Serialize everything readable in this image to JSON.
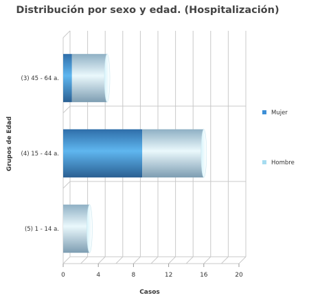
{
  "chart_data": {
    "type": "bar",
    "orientation": "horizontal",
    "stacked": true,
    "style": "3d-cylinder",
    "title": "Distribución por sexo y edad. (Hospitalización)",
    "xlabel": "Casos",
    "ylabel": "Grupos de Edad",
    "xlim": [
      0,
      20
    ],
    "xticks": [
      0,
      4,
      8,
      12,
      16,
      20
    ],
    "grid": true,
    "legend_position": "right",
    "categories": [
      "(3) 45 - 64 a.",
      "(4) 15 - 44 a.",
      "(5) 1 - 14 a."
    ],
    "series": [
      {
        "name": "Mujer",
        "values": [
          1,
          9,
          0
        ],
        "color": "#3d8fd6"
      },
      {
        "name": "Hombre",
        "values": [
          4,
          7,
          3
        ],
        "color": "#a6dcf0"
      }
    ]
  }
}
